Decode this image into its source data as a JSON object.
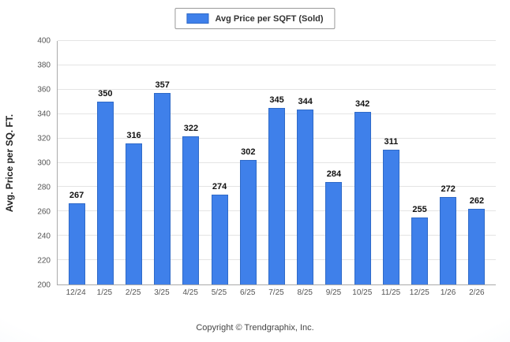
{
  "footer": {
    "copyright": "Copyright © Trendgraphix, Inc."
  },
  "chart_data": {
    "type": "bar",
    "title": "Avg Price per SQFT (Sold)",
    "ylabel": "Avg. Price per SQ. FT.",
    "categories": [
      "12/24",
      "1/25",
      "2/25",
      "3/25",
      "4/25",
      "5/25",
      "6/25",
      "7/25",
      "8/25",
      "9/25",
      "10/25",
      "11/25",
      "12/25",
      "1/26",
      "2/26"
    ],
    "values": [
      267,
      350,
      316,
      357,
      322,
      274,
      302,
      345,
      344,
      284,
      342,
      311,
      255,
      272,
      262
    ],
    "ylim": [
      200,
      400
    ],
    "ytick_step": 20,
    "grid": true,
    "legend_position": "top",
    "bar_color": "#3f80ea",
    "bar_border_color": "#2f6ac8"
  }
}
